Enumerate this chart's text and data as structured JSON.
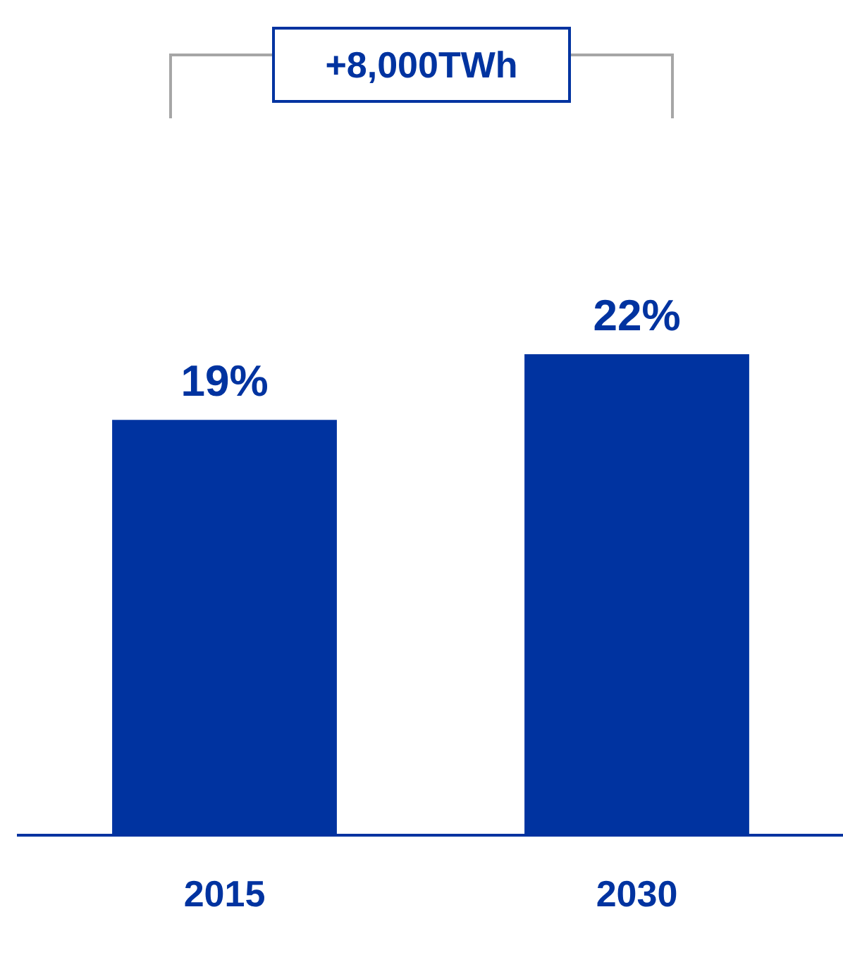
{
  "chart_data": {
    "type": "bar",
    "categories": [
      "2015",
      "2030"
    ],
    "values": [
      19,
      22
    ],
    "value_labels": [
      "19%",
      "22%"
    ],
    "color": "#0033a0",
    "annotations": [
      "+8,000TWh"
    ],
    "grid": false,
    "legend": false
  }
}
